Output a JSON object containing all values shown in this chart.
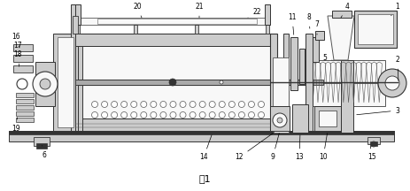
{
  "title": "图1",
  "title_fontsize": 8,
  "bg": "#ffffff",
  "lc": "#555555",
  "dc": "#333333",
  "fc_main": "#f0f0f0",
  "fc_light": "#f8f8f8",
  "fc_dark": "#cccccc",
  "label_fs": 5.5
}
